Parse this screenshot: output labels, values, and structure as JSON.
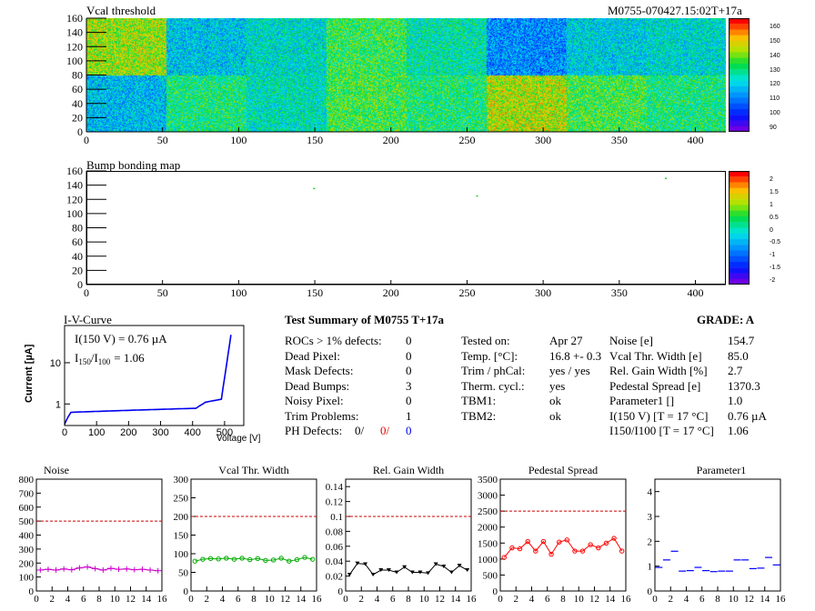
{
  "header": {
    "map_title": "Vcal threshold",
    "module_id": "M0755-070427.15:02T+17a",
    "bump_title": "Bump bonding map"
  },
  "vcal_map": {
    "yticks": [
      "0",
      "20",
      "40",
      "60",
      "80",
      "100",
      "120",
      "140",
      "160"
    ],
    "xticks": [
      "0",
      "50",
      "100",
      "150",
      "200",
      "250",
      "300",
      "350",
      "400"
    ],
    "palette_labels": [
      "160",
      "150",
      "140",
      "130",
      "120",
      "110",
      "100",
      "90"
    ],
    "rocs": [
      {
        "col": 0,
        "row": 0,
        "level": 0.72
      },
      {
        "col": 1,
        "level": 0.4,
        "row": 0
      },
      {
        "col": 2,
        "row": 0,
        "level": 0.46
      },
      {
        "col": 3,
        "row": 0,
        "level": 0.6
      },
      {
        "col": 4,
        "row": 0,
        "level": 0.5
      },
      {
        "col": 5,
        "row": 0,
        "level": 0.3
      },
      {
        "col": 6,
        "row": 0,
        "level": 0.42
      },
      {
        "col": 7,
        "row": 0,
        "level": 0.45
      },
      {
        "col": 0,
        "row": 1,
        "level": 0.38
      },
      {
        "col": 1,
        "row": 1,
        "level": 0.55
      },
      {
        "col": 2,
        "row": 1,
        "level": 0.48
      },
      {
        "col": 3,
        "row": 1,
        "level": 0.62
      },
      {
        "col": 4,
        "row": 1,
        "level": 0.56
      },
      {
        "col": 5,
        "row": 1,
        "level": 0.74
      },
      {
        "col": 6,
        "row": 1,
        "level": 0.62
      },
      {
        "col": 7,
        "row": 1,
        "level": 0.55
      }
    ]
  },
  "bump_map": {
    "yticks": [
      "0",
      "20",
      "40",
      "60",
      "80",
      "100",
      "120",
      "140",
      "160"
    ],
    "xticks": [
      "0",
      "50",
      "100",
      "150",
      "200",
      "250",
      "300",
      "350",
      "400"
    ],
    "palette_labels": [
      "2",
      "1.5",
      "1",
      "0.5",
      "0",
      "-0.5",
      "-1",
      "-1.5",
      "-2"
    ],
    "defects": [
      [
        149,
        143
      ],
      [
        256,
        132
      ],
      [
        380,
        158
      ]
    ]
  },
  "iv": {
    "title": "I-V-Curve",
    "i150": "I(150 V) = 0.76 µA",
    "ratio_label": "I",
    "ratio_sub1": "150",
    "ratio_mid": "/I",
    "ratio_sub2": "100",
    "ratio_val": "=  1.06",
    "ylabel": "Current [µA]",
    "xlabel": "Voltage [V]",
    "xticks": [
      "0",
      "100",
      "200",
      "300",
      "400",
      "500"
    ],
    "yticks": [
      "1",
      "10"
    ]
  },
  "summary": {
    "title": "Test Summary of M0755     T+17a",
    "grade": "GRADE:  A",
    "left": [
      {
        "label": "ROCs > 1% defects:",
        "value": "0"
      },
      {
        "label": "Dead Pixel:",
        "value": "0"
      },
      {
        "label": "Mask Defects:",
        "value": "0"
      },
      {
        "label": "Dead Bumps:",
        "value": "3"
      },
      {
        "label": "Noisy Pixel:",
        "value": "0"
      },
      {
        "label": "Trim Problems:",
        "value": "1"
      }
    ],
    "ph_label": "PH Defects:",
    "ph_values": [
      "0/",
      "0/",
      "0"
    ],
    "middle": [
      {
        "label": "Tested on:",
        "value": "Apr 27"
      },
      {
        "label": "Temp. [°C]:",
        "value": "16.8 +- 0.3"
      },
      {
        "label": "Trim / phCal:",
        "value": "yes / yes"
      },
      {
        "label": "Therm. cycl.:",
        "value": "yes"
      },
      {
        "label": "TBM1:",
        "value": "ok"
      },
      {
        "label": "TBM2:",
        "value": "ok"
      }
    ],
    "right": [
      {
        "label": "Noise [e]",
        "value": "154.7"
      },
      {
        "label": "Vcal Thr. Width [e]",
        "value": "85.0"
      },
      {
        "label": "Rel. Gain Width [%]",
        "value": "2.7"
      },
      {
        "label": "Pedestal Spread [e]",
        "value": "1370.3"
      },
      {
        "label": "Parameter1 []",
        "value": "1.0"
      },
      {
        "label": "I(150 V) [T = 17 °C]",
        "value": "0.76 µA"
      },
      {
        "label": "I150/I100  [T = 17 °C]",
        "value": "1.06"
      }
    ]
  },
  "colors": {
    "noise": "#cc00cc",
    "vcal": "#00aa00",
    "gain": "#000000",
    "pedestal": "#ff0000",
    "param": "#0000ff",
    "limit": "#cc0000"
  },
  "chart_data": [
    {
      "type": "line",
      "title": "Noise",
      "x": [
        0,
        1,
        2,
        3,
        4,
        5,
        6,
        7,
        8,
        9,
        10,
        11,
        12,
        13,
        14,
        15
      ],
      "values": [
        150,
        155,
        150,
        158,
        152,
        165,
        172,
        160,
        150,
        162,
        155,
        158,
        152,
        155,
        150,
        145
      ],
      "ylim": [
        0,
        800
      ],
      "limit": 500,
      "yticks": [
        0,
        100,
        200,
        300,
        400,
        500,
        600,
        700,
        800
      ],
      "xlim": [
        0,
        16
      ]
    },
    {
      "type": "line",
      "title": "Vcal Thr. Width",
      "x": [
        0,
        1,
        2,
        3,
        4,
        5,
        6,
        7,
        8,
        9,
        10,
        11,
        12,
        13,
        14,
        15
      ],
      "values": [
        80,
        85,
        87,
        86,
        88,
        85,
        88,
        84,
        87,
        82,
        83,
        88,
        80,
        84,
        90,
        85
      ],
      "ylim": [
        0,
        300
      ],
      "limit": 200,
      "yticks": [
        0,
        50,
        100,
        150,
        200,
        250,
        300
      ],
      "xlim": [
        0,
        16
      ]
    },
    {
      "type": "line",
      "title": "Rel. Gain Width",
      "x": [
        0,
        1,
        2,
        3,
        4,
        5,
        6,
        7,
        8,
        9,
        10,
        11,
        12,
        13,
        14,
        15
      ],
      "values": [
        0.022,
        0.037,
        0.036,
        0.022,
        0.028,
        0.028,
        0.025,
        0.032,
        0.025,
        0.025,
        0.024,
        0.036,
        0.033,
        0.025,
        0.034,
        0.028
      ],
      "ylim": [
        0,
        0.15
      ],
      "limit": 0.1,
      "yticks": [
        0,
        0.02,
        0.04,
        0.06,
        0.08,
        0.1,
        0.12,
        0.14
      ],
      "xlim": [
        0,
        16
      ]
    },
    {
      "type": "line",
      "title": "Pedestal Spread",
      "x": [
        0,
        1,
        2,
        3,
        4,
        5,
        6,
        7,
        8,
        9,
        10,
        11,
        12,
        13,
        14,
        15
      ],
      "values": [
        1050,
        1350,
        1320,
        1550,
        1250,
        1550,
        1150,
        1530,
        1600,
        1250,
        1250,
        1450,
        1350,
        1500,
        1650,
        1250
      ],
      "ylim": [
        0,
        3500
      ],
      "limit": 2500,
      "yticks": [
        0,
        500,
        1000,
        1500,
        2000,
        2500,
        3000,
        3500
      ],
      "xlim": [
        0,
        16
      ]
    },
    {
      "type": "scatter",
      "title": "Parameter1",
      "x": [
        0,
        1,
        2,
        3,
        4,
        5,
        6,
        7,
        8,
        9,
        10,
        11,
        12,
        13,
        14,
        15
      ],
      "values": [
        0.95,
        1.25,
        1.6,
        0.8,
        0.82,
        0.95,
        0.82,
        0.78,
        0.8,
        0.8,
        1.25,
        1.25,
        0.9,
        0.92,
        1.35,
        1.05
      ],
      "ylim": [
        0,
        4.5
      ],
      "yticks": [
        0,
        1,
        2,
        3,
        4
      ],
      "xlim": [
        0,
        16
      ]
    }
  ]
}
